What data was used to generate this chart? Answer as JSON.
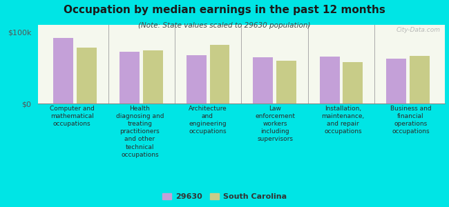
{
  "title": "Occupation by median earnings in the past 12 months",
  "subtitle": "(Note: State values scaled to 29630 population)",
  "background_color": "#00e5e5",
  "plot_bg_top": "#e8f0d8",
  "plot_bg_bottom": "#f5f8ee",
  "categories": [
    "Computer and\nmathematical\noccupations",
    "Health\ndiagnosing and\ntreating\npractitioners\nand other\ntechnical\noccupations",
    "Architecture\nand\nengineering\noccupations",
    "Law\nenforcement\nworkers\nincluding\nsupervisors",
    "Installation,\nmaintenance,\nand repair\noccupations",
    "Business and\nfinancial\noperations\noccupations"
  ],
  "values_29630": [
    92000,
    72000,
    68000,
    65000,
    66000,
    63000
  ],
  "values_sc": [
    78000,
    74000,
    82000,
    60000,
    58000,
    67000
  ],
  "color_29630": "#c4a0d8",
  "color_sc": "#c8cc88",
  "ylim": [
    0,
    110000
  ],
  "yticks": [
    0,
    100000
  ],
  "ytick_labels": [
    "$0",
    "$100k"
  ],
  "legend_labels": [
    "29630",
    "South Carolina"
  ],
  "watermark": "City-Data.com",
  "title_fontsize": 11,
  "subtitle_fontsize": 7.5,
  "label_fontsize": 6.5,
  "legend_fontsize": 8
}
